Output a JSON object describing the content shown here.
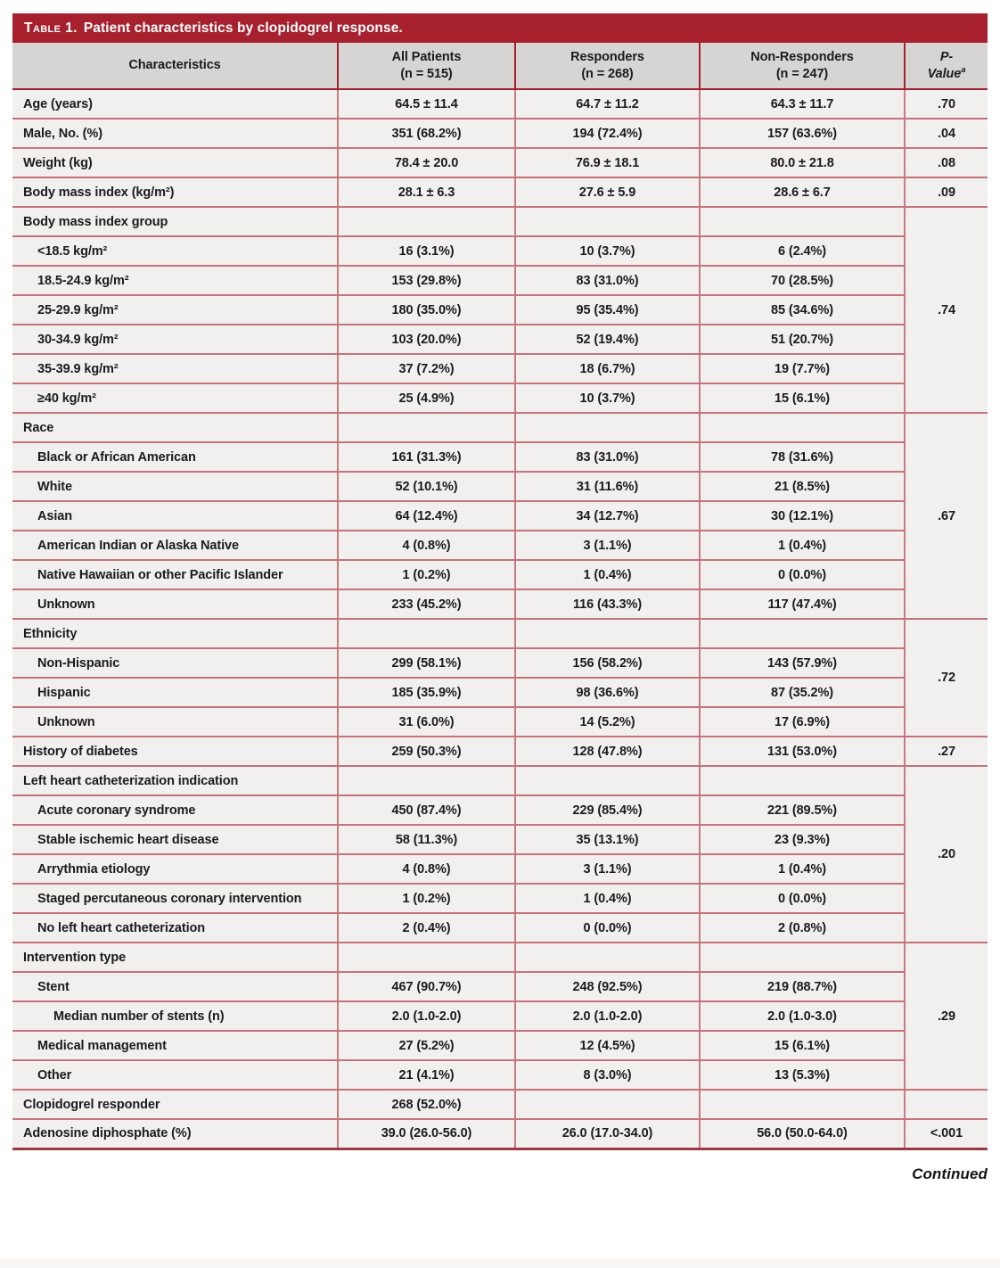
{
  "title": {
    "label": "Table 1.",
    "text": "Patient characteristics by clopidogrel response."
  },
  "columns": {
    "characteristics": "Characteristics",
    "groups": [
      {
        "name": "All Patients",
        "n": "(n = 515)"
      },
      {
        "name": "Responders",
        "n": "(n = 268)"
      },
      {
        "name": "Non-Responders",
        "n": "(n = 247)"
      }
    ],
    "p": {
      "line1": "P-",
      "line2": "Value",
      "sup": "a"
    }
  },
  "rows": [
    {
      "label": "Age (years)",
      "indent": 0,
      "values": [
        "64.5 ± 11.4",
        "64.7 ± 11.2",
        "64.3 ± 11.7"
      ],
      "p": ".70",
      "p_span": 1
    },
    {
      "label": "Male, No. (%)",
      "indent": 0,
      "values": [
        "351 (68.2%)",
        "194 (72.4%)",
        "157 (63.6%)"
      ],
      "p": ".04",
      "p_span": 1
    },
    {
      "label": "Weight (kg)",
      "indent": 0,
      "values": [
        "78.4 ± 20.0",
        "76.9 ± 18.1",
        "80.0 ± 21.8"
      ],
      "p": ".08",
      "p_span": 1
    },
    {
      "label": "Body mass index (kg/m²)",
      "indent": 0,
      "values": [
        "28.1 ± 6.3",
        "27.6 ± 5.9",
        "28.6 ± 6.7"
      ],
      "p": ".09",
      "p_span": 1
    },
    {
      "label": "Body mass index group",
      "indent": 0,
      "values": [
        "",
        "",
        ""
      ],
      "p": ".74",
      "p_span": 7
    },
    {
      "label": "<18.5 kg/m²",
      "indent": 1,
      "values": [
        "16 (3.1%)",
        "10 (3.7%)",
        "6 (2.4%)"
      ]
    },
    {
      "label": "18.5-24.9 kg/m²",
      "indent": 1,
      "values": [
        "153 (29.8%)",
        "83 (31.0%)",
        "70 (28.5%)"
      ]
    },
    {
      "label": "25-29.9 kg/m²",
      "indent": 1,
      "values": [
        "180 (35.0%)",
        "95 (35.4%)",
        "85 (34.6%)"
      ]
    },
    {
      "label": "30-34.9 kg/m²",
      "indent": 1,
      "values": [
        "103 (20.0%)",
        "52 (19.4%)",
        "51 (20.7%)"
      ]
    },
    {
      "label": "35-39.9 kg/m²",
      "indent": 1,
      "values": [
        "37 (7.2%)",
        "18 (6.7%)",
        "19 (7.7%)"
      ]
    },
    {
      "label": "≥40 kg/m²",
      "indent": 1,
      "values": [
        "25 (4.9%)",
        "10 (3.7%)",
        "15 (6.1%)"
      ]
    },
    {
      "label": "Race",
      "indent": 0,
      "values": [
        "",
        "",
        ""
      ],
      "p": ".67",
      "p_span": 7
    },
    {
      "label": "Black or African American",
      "indent": 1,
      "values": [
        "161 (31.3%)",
        "83 (31.0%)",
        "78 (31.6%)"
      ]
    },
    {
      "label": "White",
      "indent": 1,
      "values": [
        "52 (10.1%)",
        "31 (11.6%)",
        "21 (8.5%)"
      ]
    },
    {
      "label": "Asian",
      "indent": 1,
      "values": [
        "64 (12.4%)",
        "34 (12.7%)",
        "30 (12.1%)"
      ]
    },
    {
      "label": "American Indian or Alaska Native",
      "indent": 1,
      "values": [
        "4 (0.8%)",
        "3 (1.1%)",
        "1 (0.4%)"
      ]
    },
    {
      "label": "Native Hawaiian or other Pacific Islander",
      "indent": 1,
      "values": [
        "1 (0.2%)",
        "1 (0.4%)",
        "0 (0.0%)"
      ]
    },
    {
      "label": "Unknown",
      "indent": 1,
      "values": [
        "233 (45.2%)",
        "116 (43.3%)",
        "117 (47.4%)"
      ]
    },
    {
      "label": "Ethnicity",
      "indent": 0,
      "values": [
        "",
        "",
        ""
      ],
      "p": ".72",
      "p_span": 4
    },
    {
      "label": "Non-Hispanic",
      "indent": 1,
      "values": [
        "299 (58.1%)",
        "156 (58.2%)",
        "143 (57.9%)"
      ]
    },
    {
      "label": "Hispanic",
      "indent": 1,
      "values": [
        "185 (35.9%)",
        "98 (36.6%)",
        "87 (35.2%)"
      ]
    },
    {
      "label": "Unknown",
      "indent": 1,
      "values": [
        "31 (6.0%)",
        "14 (5.2%)",
        "17 (6.9%)"
      ]
    },
    {
      "label": "History of diabetes",
      "indent": 0,
      "values": [
        "259 (50.3%)",
        "128 (47.8%)",
        "131 (53.0%)"
      ],
      "p": ".27",
      "p_span": 1
    },
    {
      "label": "Left heart catheterization indication",
      "indent": 0,
      "values": [
        "",
        "",
        ""
      ],
      "p": ".20",
      "p_span": 6
    },
    {
      "label": "Acute coronary syndrome",
      "indent": 1,
      "values": [
        "450 (87.4%)",
        "229 (85.4%)",
        "221 (89.5%)"
      ]
    },
    {
      "label": "Stable ischemic heart disease",
      "indent": 1,
      "values": [
        "58 (11.3%)",
        "35 (13.1%)",
        "23 (9.3%)"
      ]
    },
    {
      "label": "Arrythmia etiology",
      "indent": 1,
      "values": [
        "4 (0.8%)",
        "3 (1.1%)",
        "1 (0.4%)"
      ]
    },
    {
      "label": "Staged percutaneous coronary intervention",
      "indent": 1,
      "values": [
        "1 (0.2%)",
        "1 (0.4%)",
        "0 (0.0%)"
      ]
    },
    {
      "label": "No left heart catheterization",
      "indent": 1,
      "values": [
        "2 (0.4%)",
        "0 (0.0%)",
        "2 (0.8%)"
      ]
    },
    {
      "label": "Intervention type",
      "indent": 0,
      "values": [
        "",
        "",
        ""
      ],
      "p": ".29",
      "p_span": 5
    },
    {
      "label": "Stent",
      "indent": 1,
      "values": [
        "467 (90.7%)",
        "248 (92.5%)",
        "219 (88.7%)"
      ]
    },
    {
      "label": "Median number of stents (n)",
      "indent": 2,
      "values": [
        "2.0 (1.0-2.0)",
        "2.0 (1.0-2.0)",
        "2.0 (1.0-3.0)"
      ]
    },
    {
      "label": "Medical management",
      "indent": 1,
      "values": [
        "27 (5.2%)",
        "12 (4.5%)",
        "15 (6.1%)"
      ]
    },
    {
      "label": "Other",
      "indent": 1,
      "values": [
        "21 (4.1%)",
        "8 (3.0%)",
        "13 (5.3%)"
      ]
    },
    {
      "label": "Clopidogrel responder",
      "indent": 0,
      "values": [
        "268 (52.0%)",
        "",
        ""
      ],
      "p": "",
      "p_span": 1
    },
    {
      "label": "Adenosine diphosphate (%)",
      "indent": 0,
      "values": [
        "39.0 (26.0-56.0)",
        "26.0 (17.0-34.0)",
        "56.0 (50.0-64.0)"
      ],
      "p": "<.001",
      "p_span": 1
    }
  ],
  "footer": {
    "continued": "Continued"
  },
  "colors": {
    "header_red": "#A6202E",
    "header_gray": "#D7D5D4",
    "row_bg": "#F2F0EF",
    "grid_pink": "#C4737B",
    "grid_dark_red": "#9E2232",
    "text": "#1B1B1B"
  }
}
